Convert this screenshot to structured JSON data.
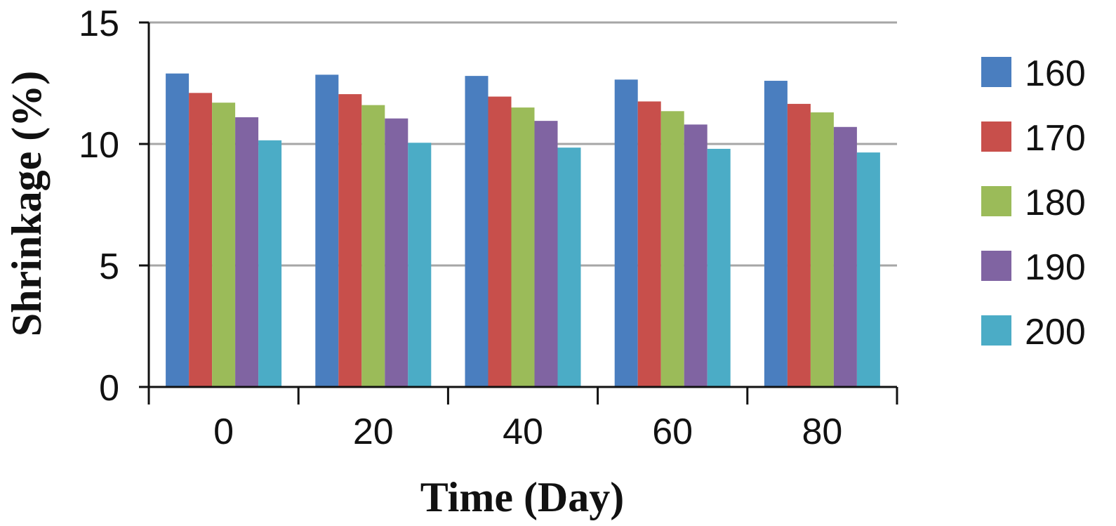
{
  "chart_data": {
    "type": "bar",
    "title": "",
    "xlabel": "Time (Day)",
    "ylabel": "Shrinkage (%)",
    "categories": [
      "0",
      "20",
      "40",
      "60",
      "80"
    ],
    "ylim": [
      0,
      15
    ],
    "yticks": [
      0,
      5,
      10,
      15
    ],
    "grid": true,
    "legend_position": "right",
    "series": [
      {
        "name": "160",
        "color": "#4a7ebf",
        "values": [
          12.9,
          12.85,
          12.8,
          12.65,
          12.6
        ]
      },
      {
        "name": "170",
        "color": "#c84f4b",
        "values": [
          12.1,
          12.05,
          11.95,
          11.75,
          11.65
        ]
      },
      {
        "name": "180",
        "color": "#9bbb59",
        "values": [
          11.7,
          11.6,
          11.5,
          11.35,
          11.3
        ]
      },
      {
        "name": "190",
        "color": "#8064a2",
        "values": [
          11.1,
          11.05,
          10.95,
          10.8,
          10.7
        ]
      },
      {
        "name": "200",
        "color": "#4bacc6",
        "values": [
          10.15,
          10.05,
          9.85,
          9.8,
          9.65
        ]
      }
    ]
  }
}
